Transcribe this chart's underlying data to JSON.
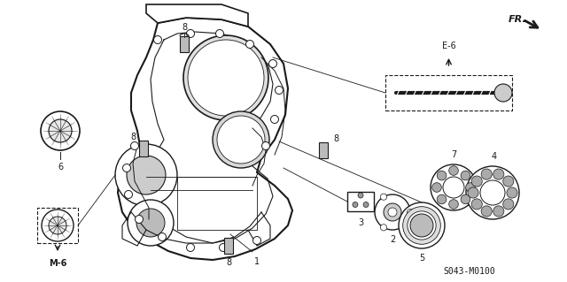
{
  "bg_color": "#ffffff",
  "line_color": "#1a1a1a",
  "gray_color": "#888888",
  "light_gray": "#cccccc",
  "dark_gray": "#444444",
  "catalog_num": "S043-M0100",
  "figsize": [
    6.4,
    3.19
  ],
  "dpi": 100,
  "xlim": [
    0,
    640
  ],
  "ylim": [
    0,
    319
  ]
}
